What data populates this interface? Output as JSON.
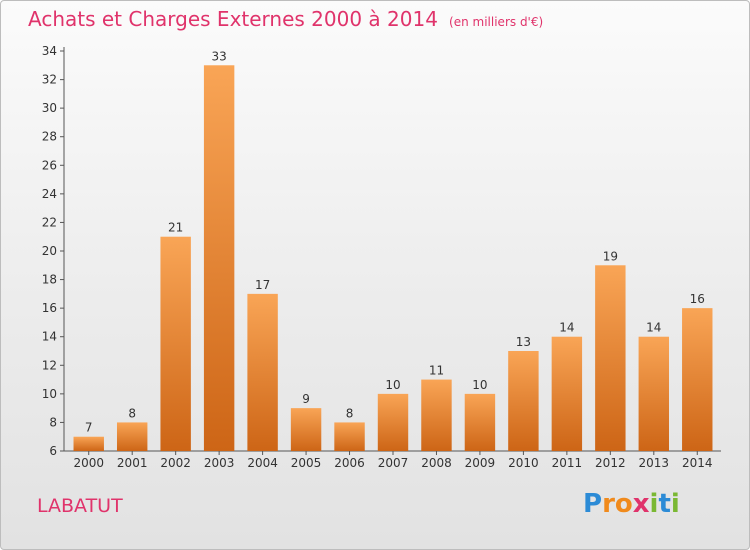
{
  "header": {
    "title": "Achats et Charges Externes 2000 à 2014",
    "subtitle": "(en milliers d'€)"
  },
  "commune": "LABATUT",
  "logo": {
    "letters": [
      "P",
      "r",
      "o",
      "x",
      "i",
      "t",
      "i"
    ],
    "colors": [
      "#2c8bd6",
      "#f08a1c",
      "#f08a1c",
      "#e0336b",
      "#7ab833",
      "#2c8bd6",
      "#7ab833"
    ]
  },
  "chart_data": {
    "type": "bar",
    "title": "Achats et Charges Externes 2000 à 2014",
    "categories": [
      "2000",
      "2001",
      "2002",
      "2003",
      "2004",
      "2005",
      "2006",
      "2007",
      "2008",
      "2009",
      "2010",
      "2011",
      "2012",
      "2013",
      "2014"
    ],
    "values": [
      7,
      8,
      21,
      33,
      17,
      9,
      8,
      10,
      11,
      10,
      13,
      14,
      19,
      14,
      16
    ],
    "ylim": [
      6,
      34
    ],
    "yticks": [
      6,
      8,
      10,
      12,
      14,
      16,
      18,
      20,
      22,
      24,
      26,
      28,
      30,
      32,
      34
    ],
    "grid": false,
    "bar_color": "#f08a2c"
  }
}
